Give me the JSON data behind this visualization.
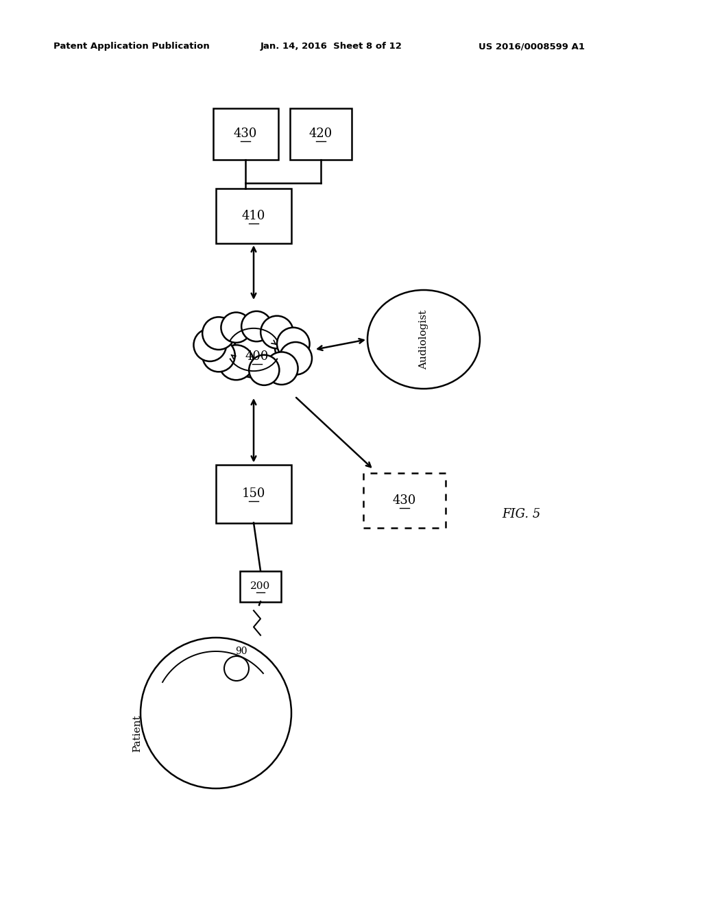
{
  "bg_color": "#ffffff",
  "header_left": "Patent Application Publication",
  "header_mid": "Jan. 14, 2016  Sheet 8 of 12",
  "header_right": "US 2016/0008599 A1",
  "fig_label": "FIG. 5"
}
